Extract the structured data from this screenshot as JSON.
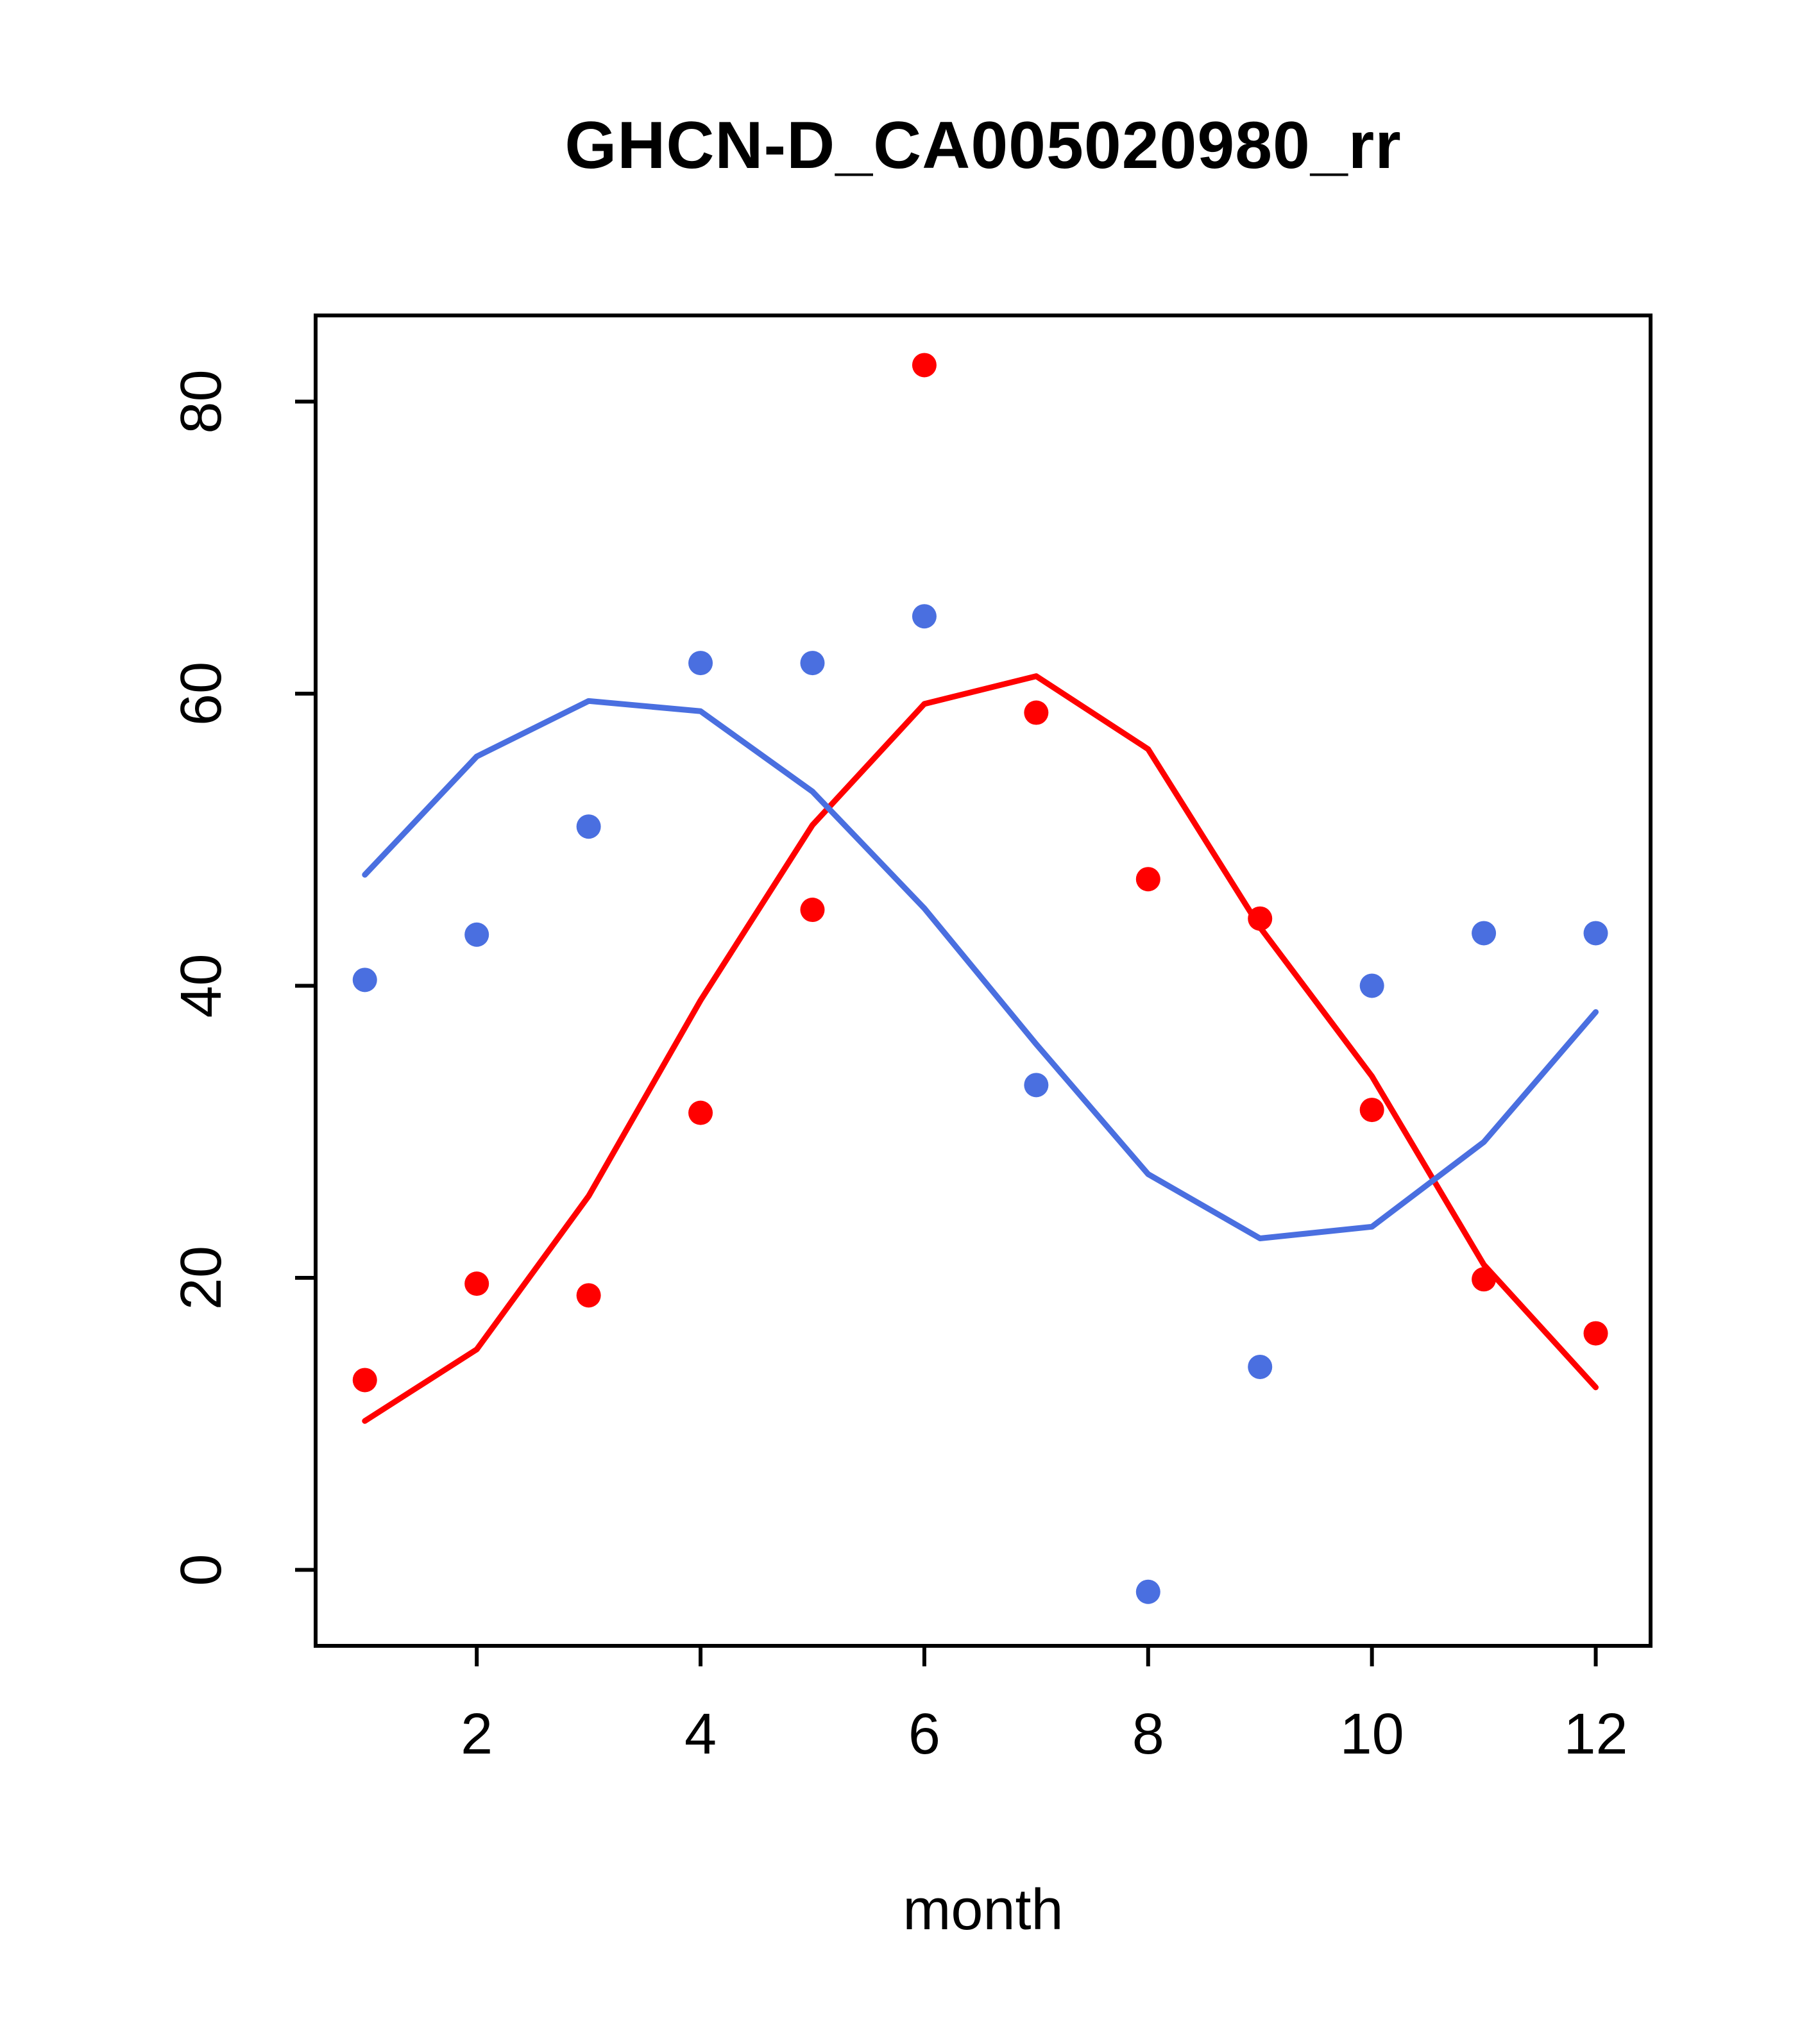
{
  "title": "GHCN-D_CA005020980_rr",
  "xlabel": "month",
  "chart_data": {
    "type": "scatter",
    "title": "GHCN-D_CA005020980_rr",
    "xlabel": "month",
    "ylabel": "",
    "xlim": [
      0.56,
      12.49
    ],
    "ylim": [
      -5.2,
      85.9
    ],
    "x_ticks": [
      2,
      4,
      6,
      8,
      10,
      12
    ],
    "y_ticks": [
      0,
      20,
      40,
      60,
      80
    ],
    "grid": false,
    "legend_position": "none",
    "x": [
      1,
      2,
      3,
      4,
      5,
      6,
      7,
      8,
      9,
      10,
      11,
      12
    ],
    "series": [
      {
        "name": "red-smoothed-line",
        "type": "line",
        "color": "#FF0000",
        "values": [
          10.2,
          15.1,
          25.6,
          39.0,
          51.0,
          59.3,
          61.2,
          56.2,
          44.0,
          33.8,
          20.9,
          12.5
        ]
      },
      {
        "name": "blue-smoothed-line",
        "type": "line",
        "color": "#4A6FE0",
        "values": [
          47.6,
          55.7,
          59.5,
          58.8,
          53.3,
          45.3,
          36.0,
          27.1,
          22.7,
          23.5,
          29.3,
          38.2
        ]
      },
      {
        "name": "red-points",
        "type": "points",
        "color": "#FF0000",
        "values": [
          13.0,
          19.6,
          18.8,
          31.3,
          45.2,
          82.5,
          58.7,
          47.3,
          44.6,
          31.5,
          19.9,
          16.2
        ]
      },
      {
        "name": "blue-points",
        "type": "points",
        "color": "#4A6FE0",
        "values": [
          40.4,
          43.5,
          50.9,
          62.1,
          62.1,
          65.3,
          33.2,
          -1.5,
          13.9,
          40.0,
          43.6,
          43.6
        ]
      }
    ]
  }
}
